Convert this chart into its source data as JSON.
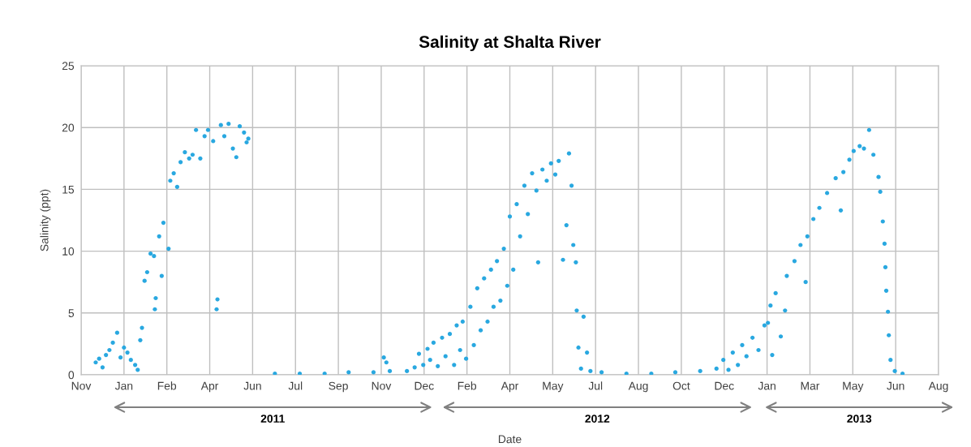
{
  "chart_data": {
    "type": "scatter",
    "title": "Salinity at Shalta River",
    "xlabel": "Date",
    "ylabel": "Salinity (ppt)",
    "annotations": [
      "2011",
      "2012",
      "2013"
    ],
    "x": [
      "2010-12-07",
      "2010-12-11",
      "2010-12-15",
      "2010-12-19",
      "2010-12-23",
      "2010-12-27",
      "2011-01-01",
      "2011-01-05",
      "2011-01-09",
      "2011-01-13",
      "2011-01-17",
      "2011-01-22",
      "2011-01-25",
      "2011-01-28",
      "2011-01-30",
      "2011-02-02",
      "2011-02-05",
      "2011-02-09",
      "2011-02-13",
      "2011-02-14",
      "2011-02-15",
      "2011-02-19",
      "2011-02-22",
      "2011-02-24",
      "2011-03-02",
      "2011-03-04",
      "2011-03-08",
      "2011-03-12",
      "2011-03-16",
      "2011-03-21",
      "2011-03-26",
      "2011-03-30",
      "2011-04-03",
      "2011-04-08",
      "2011-04-13",
      "2011-04-17",
      "2011-04-23",
      "2011-04-27",
      "2011-04-28",
      "2011-05-02",
      "2011-05-06",
      "2011-05-11",
      "2011-05-16",
      "2011-05-20",
      "2011-05-24",
      "2011-05-29",
      "2011-06-01",
      "2011-06-03",
      "2011-07-04",
      "2011-08-02",
      "2011-08-31",
      "2011-09-28",
      "2011-10-27",
      "2011-11-08",
      "2011-11-11",
      "2011-11-15",
      "2011-12-05",
      "2011-12-14",
      "2011-12-19",
      "2011-12-24",
      "2011-12-29",
      "2012-01-01",
      "2012-01-05",
      "2012-01-10",
      "2012-01-15",
      "2012-01-19",
      "2012-01-24",
      "2012-01-29",
      "2012-02-01",
      "2012-02-05",
      "2012-02-08",
      "2012-02-12",
      "2012-02-17",
      "2012-02-21",
      "2012-02-25",
      "2012-02-29",
      "2012-03-04",
      "2012-03-08",
      "2012-03-12",
      "2012-03-15",
      "2012-03-19",
      "2012-03-23",
      "2012-03-27",
      "2012-03-31",
      "2012-04-03",
      "2012-04-07",
      "2012-04-11",
      "2012-04-15",
      "2012-04-20",
      "2012-04-24",
      "2012-04-29",
      "2012-05-04",
      "2012-05-06",
      "2012-05-11",
      "2012-05-16",
      "2012-05-21",
      "2012-05-26",
      "2012-05-30",
      "2012-06-04",
      "2012-06-08",
      "2012-06-11",
      "2012-06-14",
      "2012-06-16",
      "2012-06-19",
      "2012-06-20",
      "2012-06-22",
      "2012-06-25",
      "2012-06-28",
      "2012-07-02",
      "2012-07-06",
      "2012-07-19",
      "2012-08-17",
      "2012-09-15",
      "2012-10-13",
      "2012-11-11",
      "2012-11-30",
      "2012-12-08",
      "2012-12-14",
      "2012-12-19",
      "2012-12-25",
      "2012-12-30",
      "2013-01-04",
      "2013-01-11",
      "2013-01-18",
      "2013-01-25",
      "2013-01-29",
      "2013-02-01",
      "2013-02-03",
      "2013-02-07",
      "2013-02-13",
      "2013-02-18",
      "2013-02-20",
      "2013-03-01",
      "2013-03-08",
      "2013-03-14",
      "2013-03-16",
      "2013-03-23",
      "2013-03-30",
      "2013-04-08",
      "2013-04-18",
      "2013-04-24",
      "2013-04-27",
      "2013-05-04",
      "2013-05-09",
      "2013-05-16",
      "2013-05-21",
      "2013-05-27",
      "2013-06-01",
      "2013-06-07",
      "2013-06-09",
      "2013-06-12",
      "2013-06-14",
      "2013-06-15",
      "2013-06-16",
      "2013-06-18",
      "2013-06-19",
      "2013-06-21",
      "2013-06-26",
      "2013-07-05"
    ],
    "series": [
      {
        "color": "#29a8e0",
        "values": [
          1.0,
          1.3,
          0.6,
          1.6,
          2.0,
          2.6,
          3.4,
          1.4,
          2.2,
          1.8,
          1.2,
          0.8,
          0.4,
          2.8,
          3.8,
          7.6,
          8.3,
          9.8,
          9.6,
          5.3,
          6.2,
          11.2,
          8.0,
          12.3,
          10.2,
          15.7,
          16.3,
          15.2,
          17.2,
          18.0,
          17.5,
          17.8,
          19.8,
          17.5,
          19.3,
          19.8,
          18.9,
          5.3,
          6.1,
          20.2,
          19.3,
          20.3,
          18.3,
          17.6,
          20.1,
          19.6,
          18.8,
          19.1,
          0.1,
          0.1,
          0.1,
          0.2,
          0.2,
          1.4,
          1.0,
          0.3,
          0.3,
          0.6,
          1.7,
          0.8,
          2.1,
          1.2,
          2.6,
          0.7,
          3.0,
          1.5,
          3.3,
          0.8,
          4.0,
          2.0,
          4.3,
          1.3,
          5.5,
          2.4,
          7.0,
          3.6,
          7.8,
          4.3,
          8.5,
          5.5,
          9.2,
          6.0,
          10.2,
          7.2,
          12.8,
          8.5,
          13.8,
          11.2,
          15.3,
          13.0,
          16.3,
          14.9,
          9.1,
          16.6,
          15.7,
          17.1,
          16.2,
          17.3,
          9.3,
          12.1,
          17.9,
          15.3,
          10.5,
          9.1,
          5.2,
          2.2,
          0.5,
          4.7,
          1.8,
          0.3,
          0.2,
          0.1,
          0.1,
          0.2,
          0.3,
          0.5,
          1.2,
          0.4,
          1.8,
          0.8,
          2.4,
          1.5,
          3.0,
          2.0,
          4.0,
          4.2,
          5.6,
          1.6,
          6.6,
          3.1,
          5.2,
          8.0,
          9.2,
          10.5,
          7.5,
          11.2,
          12.6,
          13.5,
          14.7,
          15.9,
          13.3,
          16.4,
          17.4,
          18.1,
          18.5,
          18.3,
          19.8,
          17.8,
          16.0,
          14.8,
          12.4,
          10.6,
          8.7,
          6.8,
          5.1,
          3.2,
          1.2,
          0.3,
          0.1
        ]
      }
    ],
    "xlim": [
      "2010-11-20",
      "2013-08-16"
    ],
    "xticks": [
      {
        "value": "2010-11-20",
        "label": "Nov"
      },
      {
        "value": "2011-01-09",
        "label": "Jan"
      },
      {
        "value": "2011-02-28",
        "label": "Feb"
      },
      {
        "value": "2011-04-19",
        "label": "Apr"
      },
      {
        "value": "2011-06-08",
        "label": "Jun"
      },
      {
        "value": "2011-07-28",
        "label": "Jul"
      },
      {
        "value": "2011-09-16",
        "label": "Sep"
      },
      {
        "value": "2011-11-05",
        "label": "Nov"
      },
      {
        "value": "2011-12-25",
        "label": "Dec"
      },
      {
        "value": "2012-02-13",
        "label": "Feb"
      },
      {
        "value": "2012-04-03",
        "label": "Apr"
      },
      {
        "value": "2012-05-23",
        "label": "May"
      },
      {
        "value": "2012-07-12",
        "label": "Jul"
      },
      {
        "value": "2012-08-31",
        "label": "Aug"
      },
      {
        "value": "2012-10-20",
        "label": "Oct"
      },
      {
        "value": "2012-12-09",
        "label": "Dec"
      },
      {
        "value": "2013-01-28",
        "label": "Jan"
      },
      {
        "value": "2013-03-19",
        "label": "Mar"
      },
      {
        "value": "2013-05-08",
        "label": "May"
      },
      {
        "value": "2013-06-27",
        "label": "Jun"
      },
      {
        "value": "2013-08-16",
        "label": "Aug"
      }
    ],
    "ylim": [
      0,
      25
    ],
    "yticks": [
      0,
      5,
      10,
      15,
      20,
      25
    ],
    "grid": true,
    "marker": "circle",
    "legend": false
  }
}
